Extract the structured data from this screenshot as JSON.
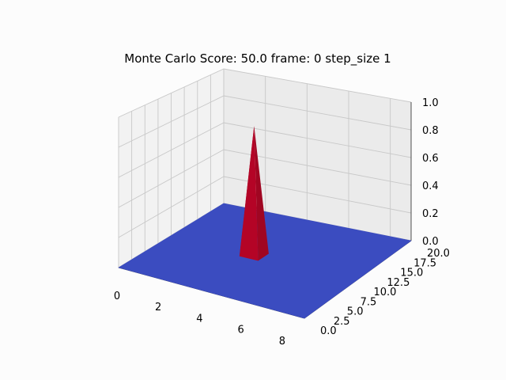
{
  "chart_data": {
    "type": "surface",
    "title": "Monte Carlo Score: 50.0 frame: 0 step_size 1",
    "x_ticks": [
      "0",
      "2",
      "4",
      "6",
      "8"
    ],
    "y_ticks": [
      "0.0",
      "2.5",
      "5.0",
      "7.5",
      "10.0",
      "12.5",
      "15.0",
      "17.5",
      "20.0"
    ],
    "z_ticks": [
      "0.0",
      "0.2",
      "0.4",
      "0.6",
      "0.8",
      "1.0"
    ],
    "xlim": [
      0,
      9
    ],
    "ylim": [
      0,
      20
    ],
    "zlim": [
      0,
      1
    ],
    "grid": true,
    "colormap": "coolwarm",
    "surface": {
      "baseline_z": 0,
      "peak": {
        "x": 4,
        "y": 10,
        "z": 0.9
      }
    },
    "colors": {
      "low": "#3b4cc0",
      "high": "#b40426"
    }
  }
}
